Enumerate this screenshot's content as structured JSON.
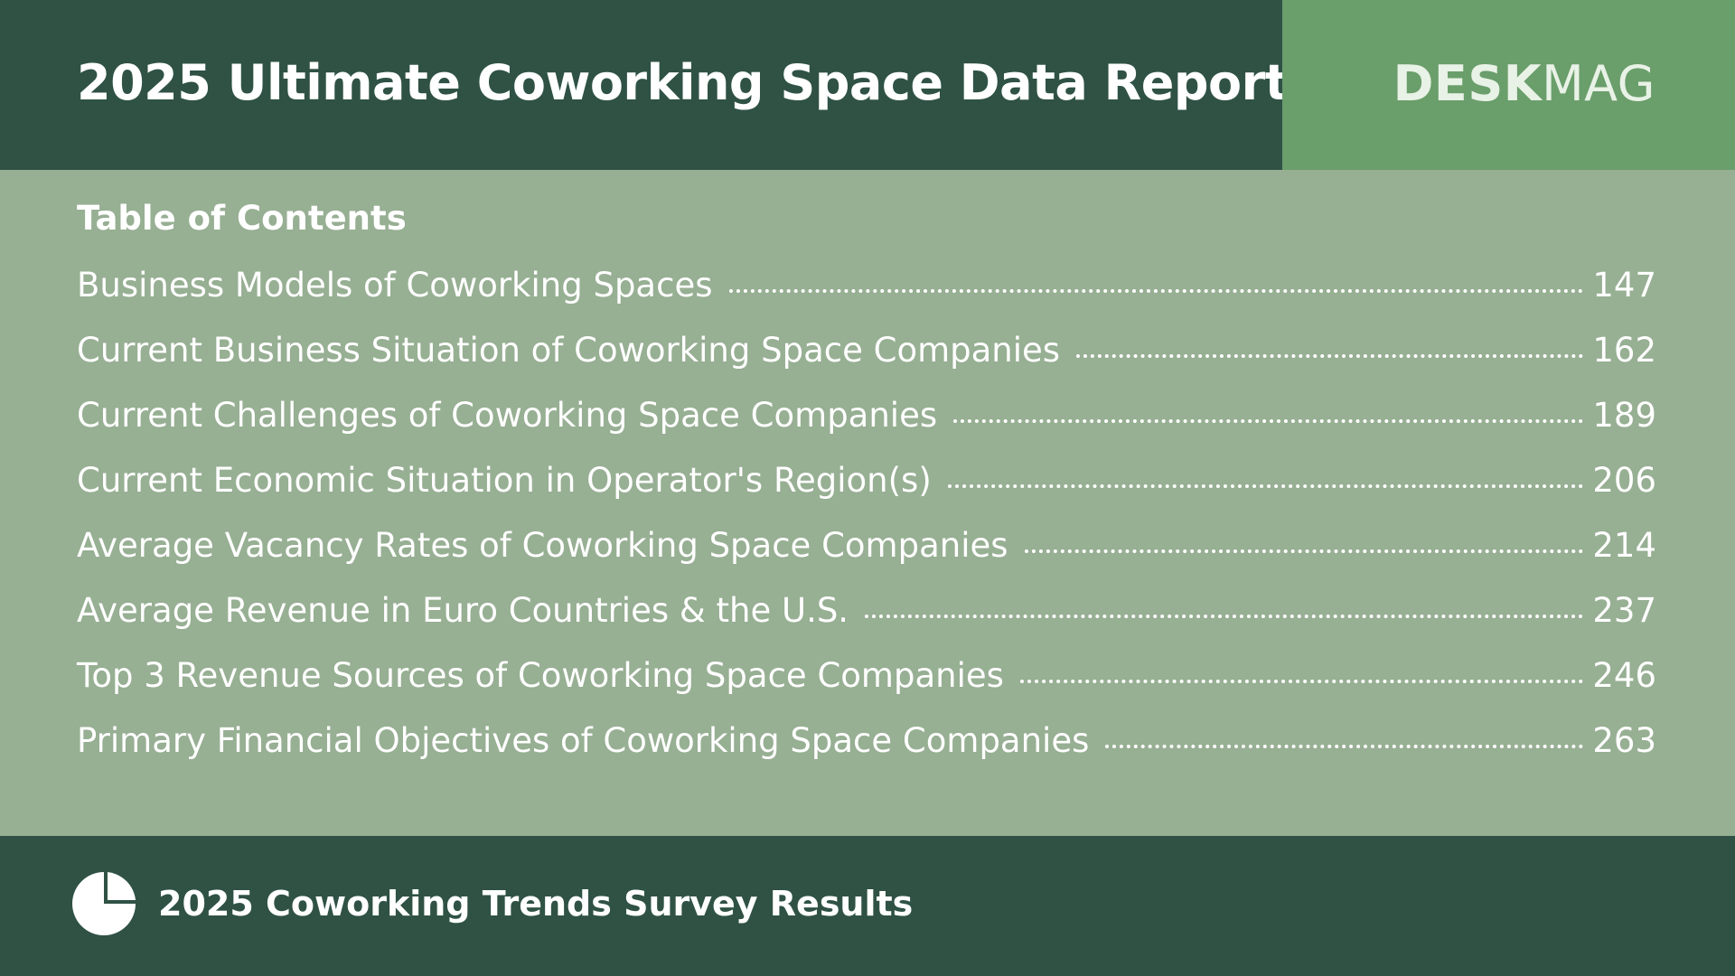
{
  "header": {
    "title": "2025 Ultimate Coworking Space Data Report",
    "brand_bold": "DESK",
    "brand_regular": "MAG"
  },
  "toc": {
    "heading": "Table of Contents",
    "items": [
      {
        "title": "Business Models of Coworking Spaces",
        "page": "147"
      },
      {
        "title": "Current Business Situation of Coworking Space Companies",
        "page": "162"
      },
      {
        "title": "Current Challenges of Coworking Space Companies",
        "page": "189"
      },
      {
        "title": "Current Economic Situation in Operator's Region(s)",
        "page": "206"
      },
      {
        "title": "Average Vacancy Rates of Coworking Space Companies",
        "page": "214"
      },
      {
        "title": "Average Revenue in Euro Countries & the U.S.",
        "page": "237"
      },
      {
        "title": "Top 3 Revenue Sources of Coworking Space Companies",
        "page": "246"
      },
      {
        "title": "Primary Financial Objectives of Coworking Space Companies",
        "page": "263"
      }
    ]
  },
  "footer": {
    "icon": "pie-chart-icon",
    "text": "2025 Coworking Trends Survey Results"
  },
  "colors": {
    "header_bg": "#2f5245",
    "brand_bg": "#6a9e6b",
    "body_bg": "#97af93",
    "text": "#ffffff"
  }
}
